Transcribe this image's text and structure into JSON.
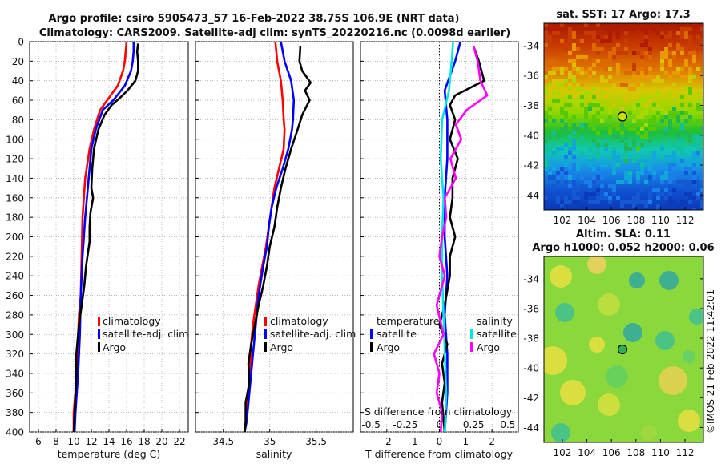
{
  "header": {
    "line1": "Argo profile: csiro 5905473_57 16-Feb-2022 38.75S 106.9E (NRT data)",
    "line2": "Climatology: CARS2009. Satellite-adj clim: synTS_20220216.nc (0.0098d earlier)"
  },
  "copyright": "©IMOS 21-Feb-2022 11:42:01",
  "chart_data": [
    {
      "type": "line",
      "title": "",
      "xlabel": "temperature (deg C)",
      "ylabel": "",
      "xlim": [
        5,
        23
      ],
      "ylim": [
        400,
        0
      ],
      "x_ticks": [
        "6",
        "8",
        "10",
        "12",
        "14",
        "16",
        "18",
        "20",
        "22"
      ],
      "y_ticks": [
        "0",
        "20",
        "40",
        "60",
        "80",
        "100",
        "120",
        "140",
        "160",
        "180",
        "200",
        "220",
        "240",
        "260",
        "280",
        "300",
        "320",
        "340",
        "360",
        "380",
        "400"
      ],
      "legend": [
        "climatology",
        "satellite-adj. clim",
        "Argo"
      ],
      "series": [
        {
          "name": "climatology",
          "color": "#ff0000",
          "x": [
            16.0,
            15.9,
            15.8,
            15.6,
            15.0,
            13.8,
            13.0,
            12.3,
            11.8,
            11.3,
            11.0,
            10.9,
            10.8,
            10.6,
            10.4,
            10.2,
            10.0,
            10.0
          ],
          "depth": [
            0,
            10,
            20,
            30,
            45,
            60,
            70,
            90,
            110,
            140,
            180,
            220,
            260,
            280,
            320,
            360,
            380,
            400
          ]
        },
        {
          "name": "satellite-adj. clim",
          "color": "#0000ff",
          "x": [
            16.8,
            16.8,
            16.7,
            16.5,
            15.8,
            14.5,
            13.3,
            12.5,
            12.0,
            11.7,
            11.3,
            11.0,
            10.8,
            10.7,
            10.5,
            10.2,
            10.1
          ],
          "depth": [
            0,
            10,
            20,
            30,
            45,
            60,
            70,
            90,
            110,
            140,
            180,
            220,
            260,
            300,
            340,
            380,
            400
          ]
        },
        {
          "name": "Argo",
          "color": "#000000",
          "x": [
            17.3,
            17.2,
            17.3,
            17.3,
            17.0,
            16.1,
            15.2,
            14.3,
            13.5,
            12.8,
            12.3,
            12.1,
            12.0,
            12.2,
            11.9,
            11.8,
            11.8,
            11.4,
            11.2,
            10.9,
            10.6,
            10.4,
            10.3,
            10.3,
            10.2,
            10.1,
            10.0
          ],
          "depth": [
            2,
            10,
            20,
            30,
            40,
            50,
            58,
            65,
            75,
            90,
            110,
            130,
            150,
            160,
            175,
            190,
            205,
            230,
            250,
            270,
            290,
            310,
            320,
            340,
            360,
            380,
            400
          ]
        }
      ]
    },
    {
      "type": "line",
      "title": "",
      "xlabel": "salinity",
      "ylabel": "",
      "xlim": [
        34.2,
        35.9
      ],
      "ylim": [
        400,
        0
      ],
      "x_ticks": [
        "34.5",
        "35",
        "35.5"
      ],
      "legend": [
        "climatology",
        "satellite-adj. clim",
        "Argo"
      ],
      "series": [
        {
          "name": "climatology",
          "color": "#ff0000",
          "x": [
            35.06,
            35.08,
            35.12,
            35.14,
            35.15,
            35.16,
            35.15,
            35.1,
            35.05,
            35.02,
            34.99,
            34.96,
            34.92,
            34.88,
            34.85,
            34.82,
            34.8,
            34.79,
            34.78,
            34.76,
            34.74,
            34.73
          ],
          "depth": [
            0,
            20,
            40,
            60,
            80,
            90,
            110,
            130,
            150,
            170,
            190,
            210,
            230,
            250,
            270,
            290,
            310,
            330,
            350,
            370,
            390,
            400
          ]
        },
        {
          "name": "satellite-adj. clim",
          "color": "#0000ff",
          "x": [
            35.12,
            35.16,
            35.23,
            35.26,
            35.25,
            35.24,
            35.2,
            35.14,
            35.07,
            35.02,
            34.99,
            34.97,
            34.93,
            34.88,
            34.85,
            34.82,
            34.79,
            34.77,
            34.75,
            34.73
          ],
          "depth": [
            0,
            20,
            40,
            60,
            80,
            90,
            110,
            130,
            150,
            170,
            190,
            210,
            230,
            260,
            290,
            320,
            350,
            370,
            390,
            400
          ]
        },
        {
          "name": "Argo",
          "color": "#000000",
          "x": [
            35.33,
            35.32,
            35.35,
            35.44,
            35.38,
            35.43,
            35.35,
            35.3,
            35.23,
            35.17,
            35.12,
            35.08,
            35.05,
            35.0,
            34.97,
            34.93,
            34.88,
            34.84,
            34.8,
            34.77,
            34.78,
            34.74,
            34.74,
            34.73
          ],
          "depth": [
            5,
            20,
            30,
            42,
            50,
            60,
            75,
            90,
            110,
            130,
            150,
            170,
            190,
            210,
            230,
            250,
            270,
            290,
            310,
            330,
            350,
            370,
            390,
            400
          ]
        }
      ]
    },
    {
      "type": "line",
      "title": "",
      "xlabel": "T difference from climatology",
      "x2label": "S difference from climatology",
      "xlim": [
        -3,
        3
      ],
      "ylim": [
        400,
        0
      ],
      "x_ticks": [
        "-2",
        "-1",
        "0",
        "1",
        "2"
      ],
      "x2_ticks": [
        "-0.5",
        "-0.25",
        "0",
        "0.25",
        "0.5"
      ],
      "legend_groups": [
        {
          "title": "temperature",
          "items": [
            "satellite",
            "Argo"
          ]
        },
        {
          "title": "salinity",
          "items": [
            "satellite",
            "Argo"
          ]
        }
      ],
      "series": [
        {
          "name": "temperature satellite",
          "color": "#0000ff",
          "x": [
            0.8,
            0.6,
            0.2,
            0.3,
            0.3,
            0.2,
            0.2,
            0.3,
            0.2,
            0.3,
            0.3,
            0.2
          ],
          "depth": [
            0,
            20,
            50,
            80,
            120,
            160,
            200,
            240,
            280,
            320,
            360,
            400
          ]
        },
        {
          "name": "temperature Argo",
          "color": "#000000",
          "x": [
            1.3,
            1.5,
            1.7,
            0.6,
            0.4,
            0.6,
            0.4,
            0.7,
            0.5,
            0.5,
            0.4,
            0.6,
            0.4,
            0.4,
            0.2,
            0.0,
            0.3,
            0.1,
            0.2,
            0.1,
            0.2
          ],
          "depth": [
            5,
            20,
            40,
            55,
            65,
            80,
            100,
            120,
            140,
            160,
            180,
            200,
            220,
            240,
            270,
            290,
            310,
            330,
            350,
            370,
            400
          ]
        },
        {
          "name": "salinity satellite",
          "color": "#00e5e5",
          "x": [
            0.1,
            0.09,
            0.07,
            0.02,
            0.01,
            0.03,
            0.02,
            0.02,
            0.03,
            0.04,
            0.05,
            0.04
          ],
          "depth": [
            0,
            20,
            50,
            80,
            120,
            160,
            200,
            240,
            280,
            320,
            360,
            400
          ]
        },
        {
          "name": "salinity Argo",
          "color": "#ff00ff",
          "x": [
            0.25,
            0.28,
            0.3,
            0.35,
            0.2,
            0.12,
            0.16,
            0.08,
            0.12,
            0.04,
            0.05,
            0.02,
            0.0,
            0.04,
            -0.02,
            0.03,
            -0.04,
            0.0,
            -0.02,
            0.02,
            0.01
          ],
          "depth": [
            5,
            20,
            40,
            55,
            70,
            85,
            100,
            120,
            140,
            160,
            180,
            200,
            220,
            240,
            270,
            300,
            320,
            340,
            360,
            380,
            400
          ]
        }
      ]
    },
    {
      "type": "heatmap",
      "title": "sat. SST: 17 Argo: 17.3",
      "xlim": [
        100.5,
        113.5
      ],
      "ylim": [
        -45,
        -32.5
      ],
      "x_ticks": [
        "102",
        "104",
        "106",
        "108",
        "110",
        "112"
      ],
      "y_ticks": [
        "-34",
        "-36",
        "-38",
        "-40",
        "-42",
        "-44"
      ],
      "marker": {
        "lon": 106.9,
        "lat": -38.75
      }
    },
    {
      "type": "heatmap",
      "title": "Altim. SLA: 0.11",
      "subtitle": "Argo h1000: 0.052 h2000: 0.06",
      "xlim": [
        100.5,
        113.5
      ],
      "ylim": [
        -45,
        -32.5
      ],
      "x_ticks": [
        "102",
        "104",
        "106",
        "108",
        "110",
        "112"
      ],
      "y_ticks": [
        "-34",
        "-36",
        "-38",
        "-40",
        "-42",
        "-44"
      ],
      "marker": {
        "lon": 106.9,
        "lat": -38.75
      }
    }
  ]
}
